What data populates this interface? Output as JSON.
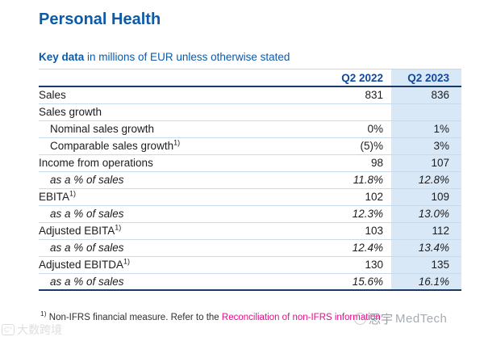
{
  "page": {
    "title": "Personal Health",
    "caption_bold": "Key data",
    "caption_rest": " in millions of EUR unless otherwise stated"
  },
  "table": {
    "columns": [
      "Q2 2022",
      "Q2 2023"
    ],
    "rows": [
      {
        "label": "Sales",
        "sup": "",
        "indent": false,
        "italic": false,
        "q2_2022": "831",
        "q2_2023": "836"
      },
      {
        "label": "Sales growth",
        "sup": "",
        "indent": false,
        "italic": false,
        "q2_2022": "",
        "q2_2023": ""
      },
      {
        "label": "Nominal sales growth",
        "sup": "",
        "indent": true,
        "italic": false,
        "q2_2022": "0%",
        "q2_2023": "1%"
      },
      {
        "label": "Comparable sales growth",
        "sup": "1)",
        "indent": true,
        "italic": false,
        "q2_2022": "(5)%",
        "q2_2023": "3%"
      },
      {
        "label": "Income from operations",
        "sup": "",
        "indent": false,
        "italic": false,
        "q2_2022": "98",
        "q2_2023": "107"
      },
      {
        "label": "as a % of sales",
        "sup": "",
        "indent": true,
        "italic": true,
        "q2_2022": "11.8%",
        "q2_2023": "12.8%"
      },
      {
        "label": "EBITA",
        "sup": "1)",
        "indent": false,
        "italic": false,
        "q2_2022": "102",
        "q2_2023": "109"
      },
      {
        "label": "as a % of sales",
        "sup": "",
        "indent": true,
        "italic": true,
        "q2_2022": "12.3%",
        "q2_2023": "13.0%"
      },
      {
        "label": "Adjusted EBITA",
        "sup": "1)",
        "indent": false,
        "italic": false,
        "q2_2022": "103",
        "q2_2023": "112"
      },
      {
        "label": "as a % of sales",
        "sup": "",
        "indent": true,
        "italic": true,
        "q2_2022": "12.4%",
        "q2_2023": "13.4%"
      },
      {
        "label": "Adjusted EBITDA",
        "sup": "1)",
        "indent": false,
        "italic": false,
        "q2_2022": "130",
        "q2_2023": "135"
      },
      {
        "label": "as a % of sales",
        "sup": "",
        "indent": true,
        "italic": true,
        "q2_2022": "15.6%",
        "q2_2023": "16.1%"
      }
    ]
  },
  "footnote": {
    "marker": "1)",
    "text": " Non-IFRS financial measure. Refer to the ",
    "link": "Reconciliation of non-IFRS information"
  },
  "watermarks": {
    "right_cn": "思宇",
    "right_en": "MedTech",
    "bottom_left_logo": "C°",
    "bottom_left_text": "大数跨境"
  },
  "colors": {
    "brand_blue": "#0c5aa8",
    "header_blue": "#11499e",
    "navy_rule": "#1a3a66",
    "highlight": "#d9e8f6",
    "row_line": "#c8daed",
    "text": "#1d1d1f",
    "footnote_text": "#2e2e2e",
    "link_magenta": "#e60d8a",
    "watermark_gray": "#8f959c"
  }
}
